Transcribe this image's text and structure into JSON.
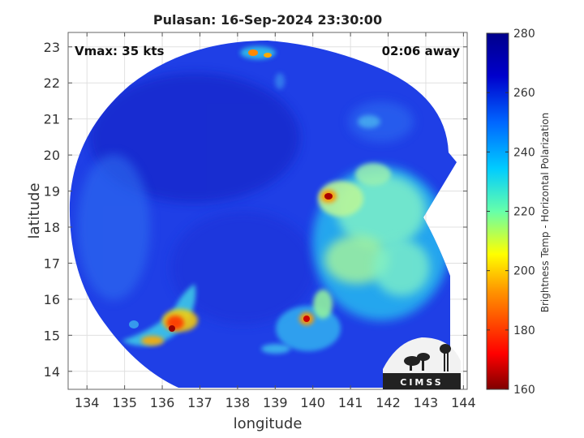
{
  "chart_data": {
    "type": "heatmap",
    "title": "Pulasan: 16-Sep-2024 23:30:00",
    "xlabel": "longitude",
    "ylabel": "latitude",
    "xlim": [
      133.5,
      144.1
    ],
    "ylim": [
      13.5,
      23.4
    ],
    "xticks": [
      "134",
      "135",
      "136",
      "137",
      "138",
      "139",
      "140",
      "141",
      "142",
      "143",
      "144"
    ],
    "yticks": [
      "14",
      "15",
      "16",
      "17",
      "18",
      "19",
      "20",
      "21",
      "22",
      "23"
    ],
    "grid": true,
    "annotations": {
      "vmax": "Vmax: 35 kts",
      "time_away": "02:06 away"
    },
    "colorbar": {
      "label": "Brightness Temp - Horizontal Polarization",
      "min": 160,
      "max": 280,
      "ticks": [
        "280",
        "260",
        "240",
        "220",
        "200",
        "180",
        "160"
      ],
      "colors": [
        "#7f0000",
        "#ff0000",
        "#ff9900",
        "#ffff00",
        "#66ffaa",
        "#00ccff",
        "#0066ff",
        "#0000cc",
        "#00008b"
      ]
    },
    "swath_center": [
      138.7,
      18.2
    ],
    "features": [
      {
        "lon": 140.3,
        "lat": 18.9,
        "tb": 165
      },
      {
        "lon": 136.3,
        "lat": 15.4,
        "tb": 175
      },
      {
        "lon": 139.8,
        "lat": 15.5,
        "tb": 185
      },
      {
        "lon": 138.4,
        "lat": 22.9,
        "tb": 190
      },
      {
        "lon": 135.4,
        "lat": 14.9,
        "tb": 200
      },
      {
        "lon": 141.5,
        "lat": 17.5,
        "tb": 222
      },
      {
        "lon": 142.5,
        "lat": 18.6,
        "tb": 230
      }
    ]
  },
  "logo": {
    "text": "CIMSS"
  }
}
